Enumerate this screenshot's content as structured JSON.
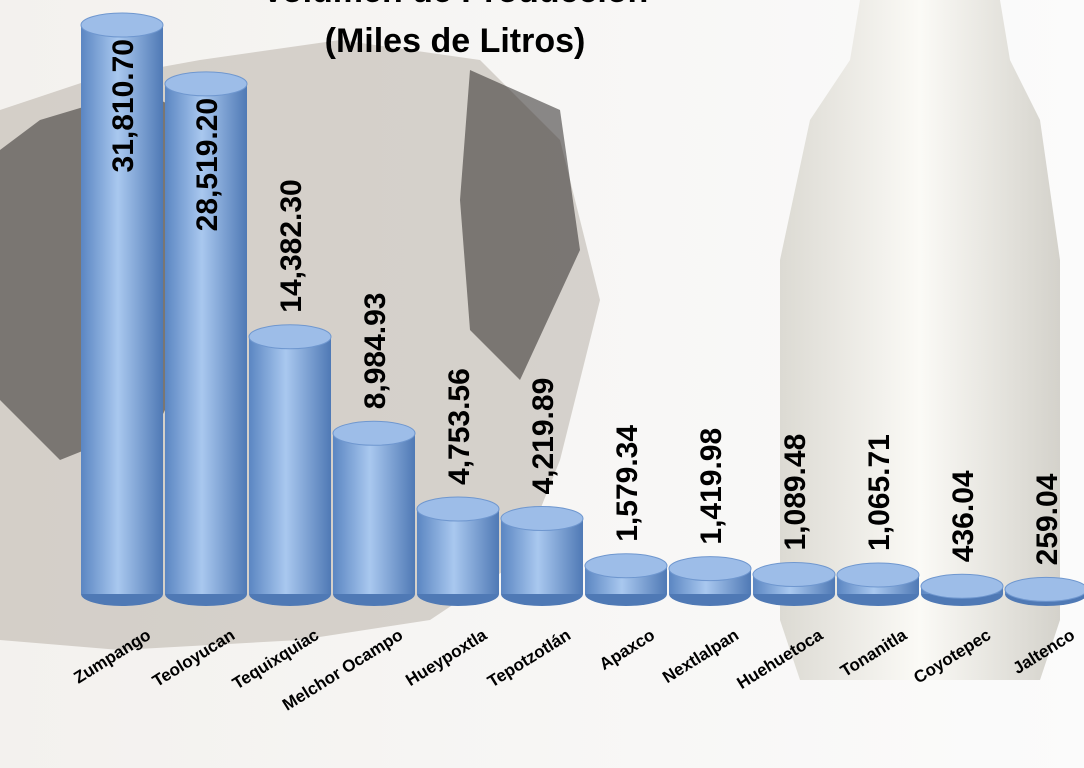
{
  "chart_data": {
    "type": "cylinder-bar",
    "title": "Volumen de Producción",
    "subtitle": "(Miles de Litros)",
    "categories": [
      "Zumpango",
      "Teoloyucan",
      "Tequixquiac",
      "Melchor Ocampo",
      "Hueypoxtla",
      "Tepotzotlán",
      "Apaxco",
      "Nextlalpan",
      "Huehuetoca",
      "Tonanitla",
      "Coyotepec",
      "Jaltenco"
    ],
    "values": [
      31810.7,
      28519.2,
      14382.3,
      8984.93,
      4753.56,
      4219.89,
      1579.34,
      1419.98,
      1089.48,
      1065.71,
      436.04,
      259.04
    ],
    "value_labels": [
      "31,810.70",
      "28,519.20",
      "14,382.30",
      "8,984.93",
      "4,753.56",
      "4,219.89",
      "1,579.34",
      "1,419.98",
      "1,089.48",
      "1,065.71",
      "436.04",
      "259.04"
    ],
    "color": "#7fa8dc"
  }
}
